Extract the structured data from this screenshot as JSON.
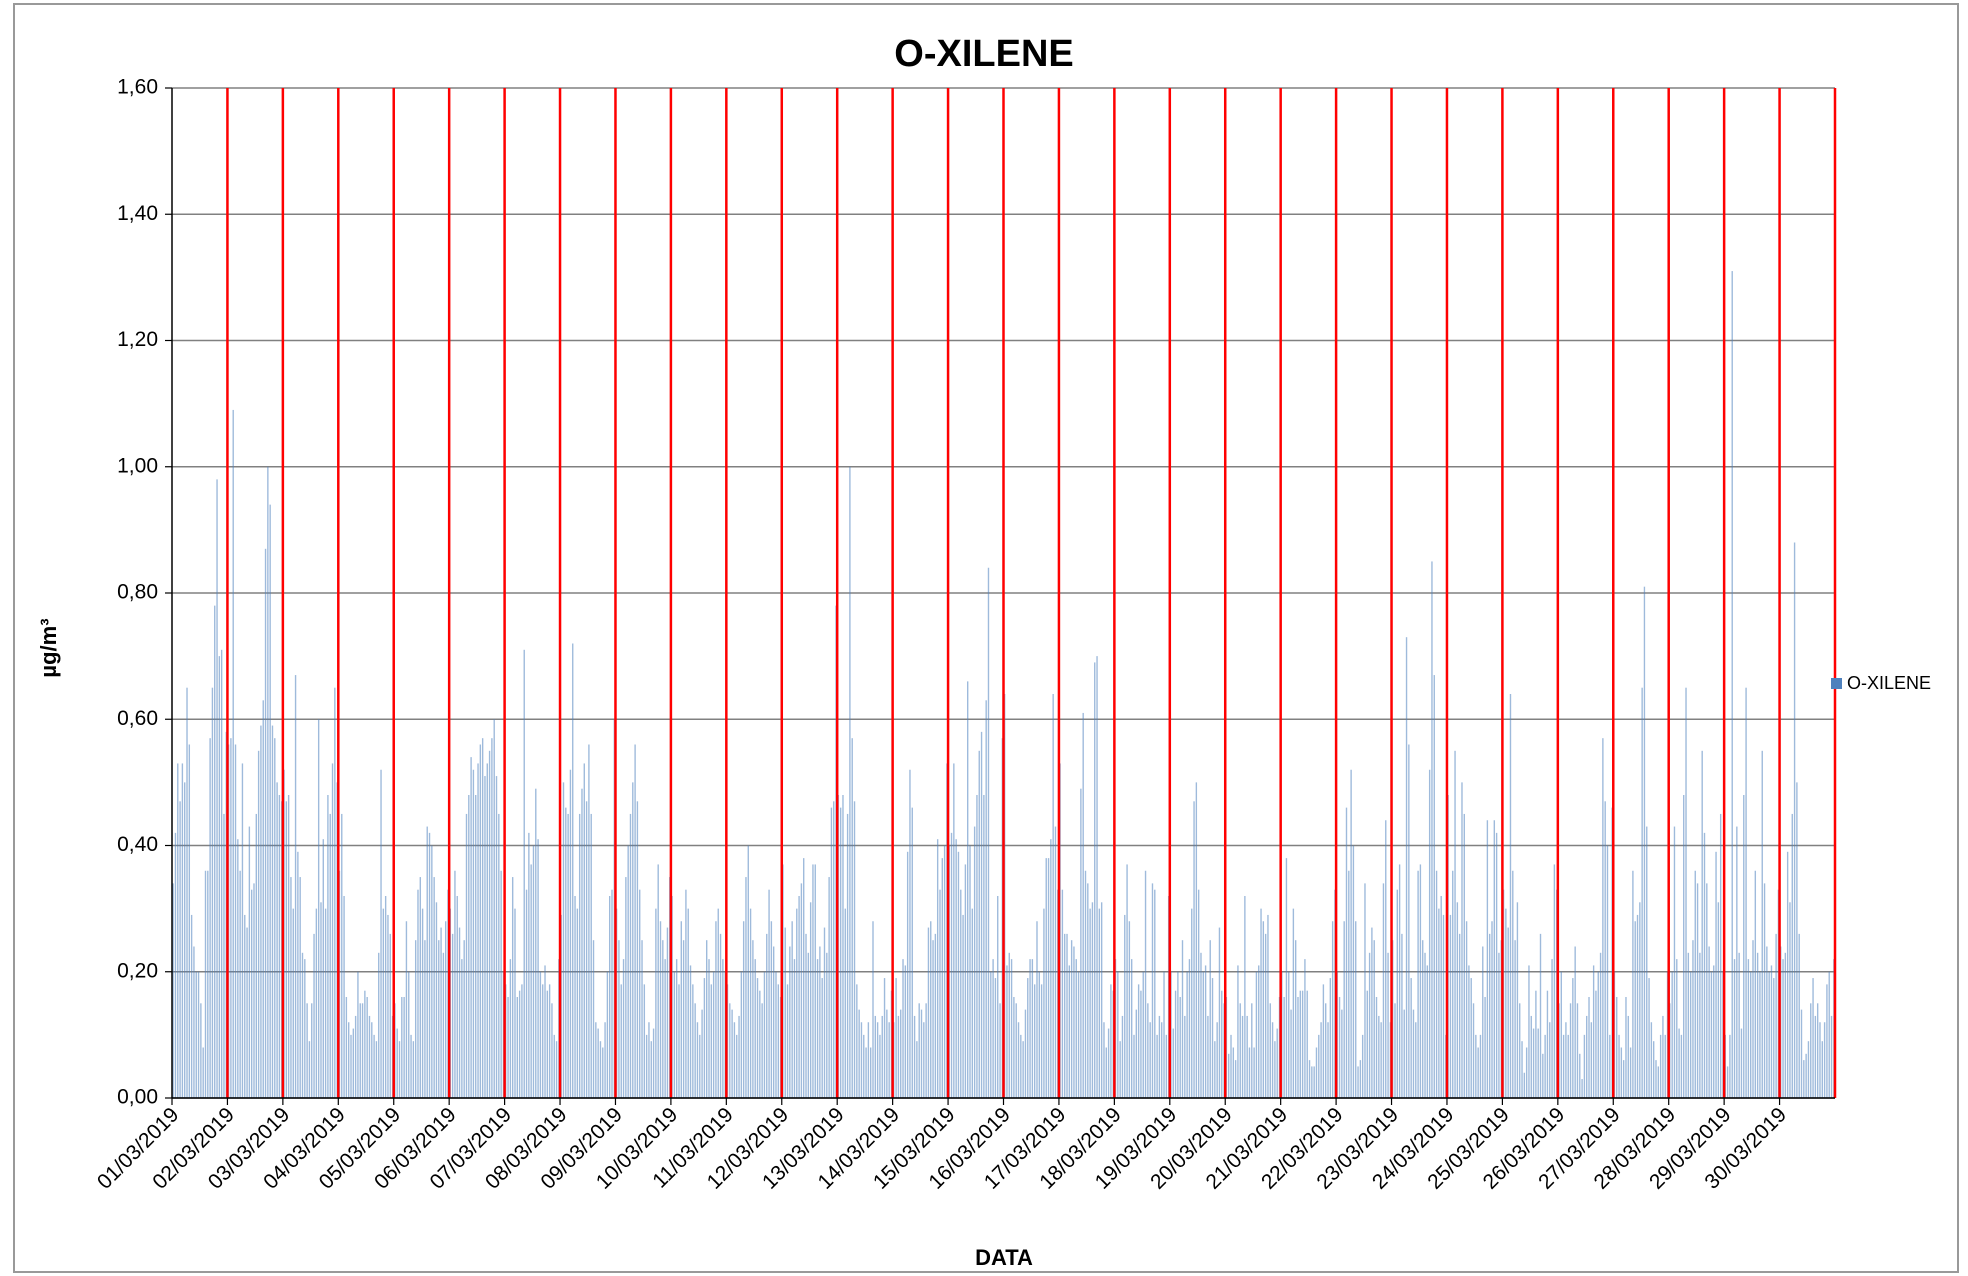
{
  "chart_data": {
    "type": "bar",
    "title": "O-XILENE",
    "xlabel": "DATA",
    "ylabel": "µg/m³",
    "series": [
      {
        "name": "O-XILENE",
        "color": "#4f81bd",
        "values": [
          0.34,
          0.42,
          0.53,
          0.47,
          0.53,
          0.5,
          0.65,
          0.56,
          0.29,
          0.24,
          0.2,
          0.2,
          0.15,
          0.08,
          0.36,
          0.36,
          0.57,
          0.65,
          0.78,
          0.98,
          0.7,
          0.71,
          0.45,
          0.58,
          0.56,
          0.57,
          1.09,
          0.56,
          0.41,
          0.36,
          0.53,
          0.29,
          0.27,
          0.43,
          0.33,
          0.34,
          0.45,
          0.55,
          0.59,
          0.63,
          0.87,
          1.0,
          0.94,
          0.59,
          0.57,
          0.5,
          0.48,
          0.47,
          0.52,
          0.47,
          0.48,
          0.35,
          0.3,
          0.67,
          0.39,
          0.35,
          0.23,
          0.22,
          0.15,
          0.09,
          0.15,
          0.26,
          0.3,
          0.6,
          0.31,
          0.41,
          0.3,
          0.48,
          0.45,
          0.53,
          0.65,
          0.5,
          0.36,
          0.45,
          0.32,
          0.16,
          0.12,
          0.1,
          0.11,
          0.13,
          0.2,
          0.15,
          0.15,
          0.17,
          0.16,
          0.13,
          0.12,
          0.1,
          0.09,
          0.23,
          0.52,
          0.3,
          0.32,
          0.29,
          0.26,
          0.13,
          0.15,
          0.11,
          0.09,
          0.16,
          0.16,
          0.28,
          0.2,
          0.1,
          0.09,
          0.25,
          0.33,
          0.35,
          0.3,
          0.25,
          0.43,
          0.42,
          0.4,
          0.35,
          0.31,
          0.25,
          0.27,
          0.23,
          0.28,
          0.33,
          0.3,
          0.26,
          0.36,
          0.32,
          0.27,
          0.22,
          0.25,
          0.45,
          0.48,
          0.54,
          0.52,
          0.48,
          0.53,
          0.56,
          0.57,
          0.51,
          0.53,
          0.55,
          0.57,
          0.6,
          0.51,
          0.45,
          0.36,
          0.2,
          0.18,
          0.16,
          0.22,
          0.35,
          0.3,
          0.16,
          0.17,
          0.18,
          0.71,
          0.33,
          0.42,
          0.37,
          0.4,
          0.49,
          0.41,
          0.2,
          0.18,
          0.21,
          0.17,
          0.18,
          0.15,
          0.1,
          0.09,
          0.22,
          0.29,
          0.5,
          0.46,
          0.45,
          0.52,
          0.72,
          0.32,
          0.3,
          0.45,
          0.49,
          0.53,
          0.47,
          0.56,
          0.45,
          0.25,
          0.12,
          0.11,
          0.09,
          0.08,
          0.12,
          0.2,
          0.32,
          0.33,
          0.6,
          0.3,
          0.25,
          0.18,
          0.22,
          0.35,
          0.4,
          0.45,
          0.5,
          0.56,
          0.47,
          0.33,
          0.25,
          0.18,
          0.1,
          0.12,
          0.09,
          0.11,
          0.3,
          0.37,
          0.28,
          0.25,
          0.22,
          0.27,
          0.35,
          0.32,
          0.2,
          0.22,
          0.18,
          0.28,
          0.25,
          0.33,
          0.3,
          0.21,
          0.18,
          0.15,
          0.12,
          0.1,
          0.14,
          0.19,
          0.25,
          0.22,
          0.18,
          0.2,
          0.28,
          0.3,
          0.26,
          0.22,
          0.2,
          0.18,
          0.15,
          0.14,
          0.12,
          0.1,
          0.13,
          0.2,
          0.28,
          0.35,
          0.4,
          0.3,
          0.25,
          0.22,
          0.19,
          0.17,
          0.15,
          0.2,
          0.26,
          0.33,
          0.28,
          0.24,
          0.2,
          0.18,
          0.16,
          0.37,
          0.27,
          0.18,
          0.24,
          0.28,
          0.22,
          0.3,
          0.32,
          0.34,
          0.38,
          0.26,
          0.23,
          0.31,
          0.37,
          0.37,
          0.22,
          0.24,
          0.19,
          0.27,
          0.23,
          0.35,
          0.46,
          0.47,
          0.78,
          0.48,
          0.46,
          0.48,
          0.3,
          0.45,
          1.0,
          0.57,
          0.47,
          0.18,
          0.14,
          0.12,
          0.1,
          0.08,
          0.12,
          0.08,
          0.28,
          0.13,
          0.12,
          0.1,
          0.13,
          0.19,
          0.14,
          0.12,
          0.17,
          0.12,
          0.19,
          0.13,
          0.14,
          0.22,
          0.21,
          0.39,
          0.52,
          0.46,
          0.13,
          0.09,
          0.15,
          0.14,
          0.12,
          0.15,
          0.27,
          0.28,
          0.25,
          0.26,
          0.41,
          0.33,
          0.38,
          0.4,
          0.53,
          0.4,
          0.42,
          0.53,
          0.41,
          0.39,
          0.33,
          0.29,
          0.37,
          0.66,
          0.4,
          0.3,
          0.43,
          0.48,
          0.55,
          0.58,
          0.48,
          0.63,
          0.84,
          0.2,
          0.22,
          0.19,
          0.32,
          0.15,
          0.57,
          0.64,
          0.21,
          0.23,
          0.22,
          0.16,
          0.15,
          0.12,
          0.1,
          0.09,
          0.14,
          0.19,
          0.22,
          0.22,
          0.18,
          0.28,
          0.2,
          0.18,
          0.3,
          0.38,
          0.38,
          0.41,
          0.64,
          0.43,
          0.33,
          0.53,
          0.33,
          0.26,
          0.26,
          0.21,
          0.25,
          0.24,
          0.22,
          0.2,
          0.49,
          0.61,
          0.36,
          0.34,
          0.3,
          0.31,
          0.69,
          0.7,
          0.3,
          0.31,
          0.12,
          0.08,
          0.11,
          0.18,
          0.17,
          0.22,
          0.2,
          0.09,
          0.13,
          0.29,
          0.37,
          0.28,
          0.22,
          0.1,
          0.14,
          0.18,
          0.17,
          0.2,
          0.36,
          0.15,
          0.12,
          0.34,
          0.33,
          0.1,
          0.13,
          0.12,
          0.2,
          0.1,
          0.32,
          0.2,
          0.11,
          0.17,
          0.2,
          0.16,
          0.25,
          0.13,
          0.2,
          0.22,
          0.3,
          0.47,
          0.5,
          0.33,
          0.23,
          0.2,
          0.21,
          0.13,
          0.25,
          0.19,
          0.09,
          0.12,
          0.27,
          0.17,
          0.15,
          0.16,
          0.07,
          0.1,
          0.08,
          0.06,
          0.21,
          0.15,
          0.13,
          0.32,
          0.13,
          0.08,
          0.15,
          0.08,
          0.2,
          0.21,
          0.3,
          0.28,
          0.26,
          0.29,
          0.15,
          0.12,
          0.09,
          0.11,
          0.16,
          0.2,
          0.16,
          0.38,
          0.2,
          0.14,
          0.3,
          0.25,
          0.16,
          0.17,
          0.17,
          0.22,
          0.17,
          0.06,
          0.05,
          0.05,
          0.08,
          0.1,
          0.12,
          0.18,
          0.15,
          0.12,
          0.19,
          0.28,
          0.33,
          0.2,
          0.16,
          0.14,
          0.28,
          0.46,
          0.36,
          0.52,
          0.4,
          0.28,
          0.05,
          0.06,
          0.1,
          0.34,
          0.17,
          0.23,
          0.27,
          0.25,
          0.16,
          0.13,
          0.12,
          0.34,
          0.44,
          0.23,
          0.12,
          0.25,
          0.15,
          0.33,
          0.37,
          0.26,
          0.14,
          0.73,
          0.56,
          0.19,
          0.14,
          0.12,
          0.36,
          0.37,
          0.25,
          0.23,
          0.21,
          0.52,
          0.85,
          0.67,
          0.36,
          0.3,
          0.32,
          0.29,
          0.1,
          0.48,
          0.29,
          0.36,
          0.55,
          0.31,
          0.26,
          0.5,
          0.45,
          0.28,
          0.21,
          0.19,
          0.15,
          0.1,
          0.08,
          0.1,
          0.24,
          0.16,
          0.44,
          0.26,
          0.28,
          0.44,
          0.42,
          0.23,
          0.25,
          0.33,
          0.3,
          0.27,
          0.64,
          0.36,
          0.25,
          0.31,
          0.15,
          0.09,
          0.04,
          0.08,
          0.21,
          0.13,
          0.11,
          0.17,
          0.11,
          0.26,
          0.07,
          0.1,
          0.17,
          0.12,
          0.22,
          0.37,
          0.33,
          0.15,
          0.2,
          0.1,
          0.12,
          0.1,
          0.15,
          0.19,
          0.24,
          0.15,
          0.07,
          0.03,
          0.1,
          0.13,
          0.16,
          0.12,
          0.21,
          0.17,
          0.2,
          0.23,
          0.57,
          0.47,
          0.4,
          0.1,
          0.46,
          0.2,
          0.16,
          0.1,
          0.08,
          0.06,
          0.16,
          0.13,
          0.08,
          0.36,
          0.28,
          0.29,
          0.31,
          0.65,
          0.81,
          0.43,
          0.19,
          0.12,
          0.09,
          0.06,
          0.05,
          0.1,
          0.13,
          0.1,
          0.2,
          0.15,
          0.2,
          0.43,
          0.22,
          0.11,
          0.1,
          0.48,
          0.65,
          0.23,
          0.2,
          0.25,
          0.36,
          0.34,
          0.23,
          0.55,
          0.42,
          0.34,
          0.24,
          0.2,
          0.21,
          0.39,
          0.31,
          0.45,
          0.2,
          0.1,
          0.05,
          0.1,
          1.31,
          0.22,
          0.43,
          0.23,
          0.11,
          0.48,
          0.65,
          0.22,
          0.2,
          0.25,
          0.36,
          0.23,
          0.2,
          0.55,
          0.34,
          0.24,
          0.2,
          0.21,
          0.19,
          0.26,
          0.33,
          0.24,
          0.22,
          0.23,
          0.39,
          0.31,
          0.45,
          0.88,
          0.5,
          0.26,
          0.14,
          0.06,
          0.07,
          0.09,
          0.15,
          0.19,
          0.13,
          0.15,
          0.12,
          0.09,
          0.12,
          0.18,
          0.2,
          0.13,
          0.22
        ]
      }
    ],
    "xlim": [
      0,
      720
    ],
    "xticks": [
      {
        "value": 0,
        "label": "01/03/2019"
      },
      {
        "value": 24,
        "label": "02/03/2019"
      },
      {
        "value": 48,
        "label": "03/03/2019"
      },
      {
        "value": 72,
        "label": "04/03/2019"
      },
      {
        "value": 96,
        "label": "05/03/2019"
      },
      {
        "value": 120,
        "label": "06/03/2019"
      },
      {
        "value": 144,
        "label": "07/03/2019"
      },
      {
        "value": 168,
        "label": "08/03/2019"
      },
      {
        "value": 192,
        "label": "09/03/2019"
      },
      {
        "value": 216,
        "label": "10/03/2019"
      },
      {
        "value": 240,
        "label": "11/03/2019"
      },
      {
        "value": 264,
        "label": "12/03/2019"
      },
      {
        "value": 288,
        "label": "13/03/2019"
      },
      {
        "value": 312,
        "label": "14/03/2019"
      },
      {
        "value": 336,
        "label": "15/03/2019"
      },
      {
        "value": 360,
        "label": "16/03/2019"
      },
      {
        "value": 384,
        "label": "17/03/2019"
      },
      {
        "value": 408,
        "label": "18/03/2019"
      },
      {
        "value": 432,
        "label": "19/03/2019"
      },
      {
        "value": 456,
        "label": "20/03/2019"
      },
      {
        "value": 480,
        "label": "21/03/2019"
      },
      {
        "value": 504,
        "label": "22/03/2019"
      },
      {
        "value": 528,
        "label": "23/03/2019"
      },
      {
        "value": 552,
        "label": "24/03/2019"
      },
      {
        "value": 576,
        "label": "25/03/2019"
      },
      {
        "value": 600,
        "label": "26/03/2019"
      },
      {
        "value": 624,
        "label": "27/03/2019"
      },
      {
        "value": 648,
        "label": "28/03/2019"
      },
      {
        "value": 672,
        "label": "29/03/2019"
      },
      {
        "value": 696,
        "label": "30/03/2019"
      }
    ],
    "ylim": [
      0,
      1.6
    ],
    "yticks": [
      {
        "value": 0,
        "label": "0,00"
      },
      {
        "value": 0.2,
        "label": "0,20"
      },
      {
        "value": 0.4,
        "label": "0,40"
      },
      {
        "value": 0.6,
        "label": "0,60"
      },
      {
        "value": 0.8,
        "label": "0,80"
      },
      {
        "value": 1.0,
        "label": "1,00"
      },
      {
        "value": 1.2,
        "label": "1,20"
      },
      {
        "value": 1.4,
        "label": "1,40"
      },
      {
        "value": 1.6,
        "label": "1,60"
      }
    ],
    "grid": true,
    "grid_color": "#808080",
    "xgrid": true,
    "xgrid_color": "#ff0000",
    "legend": "right"
  }
}
